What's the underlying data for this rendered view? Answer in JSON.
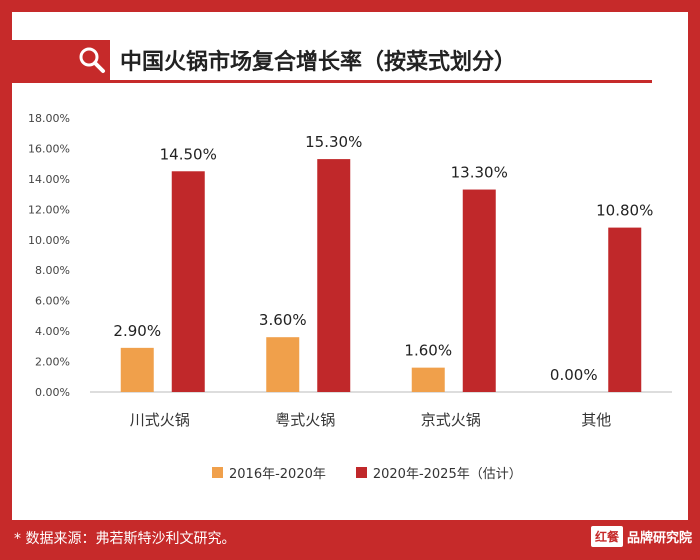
{
  "title": "中国火锅市场复合增长率（按菜式划分）",
  "source_note": "* 数据来源：弗若斯特沙利文研究。",
  "brand": {
    "logo": "红餐",
    "text": "品牌研究院"
  },
  "colors": {
    "frame": "#c62a2a",
    "series1": "#f0a04b",
    "series2": "#c0282a"
  },
  "chart_data": {
    "type": "bar",
    "title": "中国火锅市场复合增长率（按菜式划分）",
    "categories": [
      "川式火锅",
      "粤式火锅",
      "京式火锅",
      "其他"
    ],
    "series": [
      {
        "name": "2016年-2020年",
        "values": [
          2.9,
          3.6,
          1.6,
          0.0
        ],
        "labels": [
          "2.90%",
          "3.60%",
          "1.60%",
          "0.00%"
        ]
      },
      {
        "name": "2020年-2025年（估计）",
        "values": [
          14.5,
          15.3,
          13.3,
          10.8
        ],
        "labels": [
          "14.50%",
          "15.30%",
          "13.30%",
          "10.80%"
        ]
      }
    ],
    "ylim": [
      0,
      18
    ],
    "yticks": [
      "0.00%",
      "2.00%",
      "4.00%",
      "6.00%",
      "8.00%",
      "10.00%",
      "12.00%",
      "14.00%",
      "16.00%",
      "18.00%"
    ],
    "xlabel": "",
    "ylabel": "",
    "grid": false,
    "legend_position": "bottom"
  }
}
